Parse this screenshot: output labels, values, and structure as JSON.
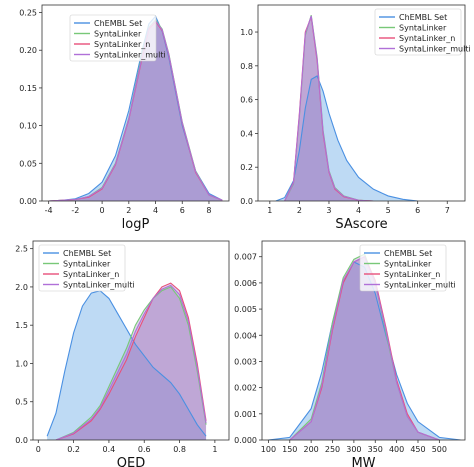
{
  "legend_labels": [
    "ChEMBL Set",
    "SyntaLinker",
    "SyntaLinker_n",
    "SyntaLinker_multi"
  ],
  "colors": {
    "chembl": "#4a90e2",
    "syntalinker": "#78c878",
    "syntalinker_n": "#e8507a",
    "syntalinker_multi": "#b070d8",
    "chembl_fill": "#a8cdf0",
    "overlap_fill": "#a383c6"
  },
  "chart_data": [
    {
      "type": "area",
      "xlabel": "logP",
      "xlim": [
        -4.5,
        9.5
      ],
      "ylim": [
        0,
        0.26
      ],
      "xticks": [
        -4,
        -2,
        0,
        2,
        4,
        6,
        8
      ],
      "yticks": [
        0.0,
        0.05,
        0.1,
        0.15,
        0.2,
        0.25
      ],
      "ytick_labels": [
        "0.00",
        "0.05",
        "0.10",
        "0.15",
        "0.20",
        "0.25"
      ],
      "series": [
        {
          "name": "ChEMBL Set",
          "x": [
            -4,
            -3,
            -2,
            -1,
            0,
            1,
            2,
            3,
            3.5,
            4,
            4.5,
            5,
            6,
            7,
            8,
            9
          ],
          "values": [
            0.0,
            0.001,
            0.003,
            0.01,
            0.025,
            0.06,
            0.12,
            0.2,
            0.235,
            0.245,
            0.225,
            0.19,
            0.1,
            0.04,
            0.01,
            0.001
          ]
        },
        {
          "name": "SyntaLinker",
          "x": [
            -4,
            -3,
            -2,
            -1,
            0,
            1,
            2,
            3,
            3.5,
            4,
            4.5,
            5,
            6,
            7,
            8,
            9
          ],
          "values": [
            0.0,
            0.001,
            0.002,
            0.006,
            0.018,
            0.05,
            0.11,
            0.195,
            0.23,
            0.24,
            0.228,
            0.195,
            0.105,
            0.04,
            0.008,
            0.001
          ]
        },
        {
          "name": "SyntaLinker_n",
          "x": [
            -4,
            -3,
            -2,
            -1,
            0,
            1,
            2,
            3,
            3.5,
            4,
            4.5,
            5,
            6,
            7,
            8,
            9
          ],
          "values": [
            0.0,
            0.001,
            0.002,
            0.005,
            0.016,
            0.048,
            0.108,
            0.19,
            0.228,
            0.238,
            0.226,
            0.193,
            0.103,
            0.038,
            0.008,
            0.001
          ]
        },
        {
          "name": "SyntaLinker_multi",
          "x": [
            -4,
            -3,
            -2,
            -1,
            0,
            1,
            2,
            3,
            3.5,
            4,
            4.5,
            5,
            6,
            7,
            8,
            9
          ],
          "values": [
            0.0,
            0.001,
            0.002,
            0.006,
            0.017,
            0.049,
            0.109,
            0.192,
            0.229,
            0.239,
            0.227,
            0.194,
            0.104,
            0.039,
            0.008,
            0.001
          ]
        }
      ],
      "legend": "top-left"
    },
    {
      "type": "area",
      "xlabel": "SAscore",
      "xlim": [
        0.6,
        7.6
      ],
      "ylim": [
        0,
        1.16
      ],
      "xticks": [
        1,
        2,
        3,
        4,
        5,
        6,
        7
      ],
      "yticks": [
        0.0,
        0.2,
        0.4,
        0.6,
        0.8,
        1.0
      ],
      "ytick_labels": [
        "0.0",
        "0.2",
        "0.4",
        "0.6",
        "0.8",
        "1.0"
      ],
      "series": [
        {
          "name": "ChEMBL Set",
          "x": [
            1.2,
            1.5,
            1.8,
            2.0,
            2.2,
            2.4,
            2.6,
            2.8,
            3.0,
            3.3,
            3.6,
            4.0,
            4.5,
            5.0,
            5.5,
            6.0
          ],
          "values": [
            0.0,
            0.02,
            0.12,
            0.3,
            0.55,
            0.72,
            0.74,
            0.65,
            0.52,
            0.36,
            0.24,
            0.14,
            0.07,
            0.03,
            0.01,
            0.0
          ]
        },
        {
          "name": "SyntaLinker",
          "x": [
            1.5,
            1.8,
            2.0,
            2.2,
            2.4,
            2.6,
            2.8,
            3.0,
            3.2,
            3.5,
            4.0,
            4.5
          ],
          "values": [
            0.0,
            0.1,
            0.5,
            0.98,
            1.1,
            0.85,
            0.42,
            0.18,
            0.08,
            0.03,
            0.005,
            0.0
          ]
        },
        {
          "name": "SyntaLinker_n",
          "x": [
            1.5,
            1.8,
            2.0,
            2.2,
            2.4,
            2.6,
            2.8,
            3.0,
            3.2,
            3.5,
            4.0,
            4.5
          ],
          "values": [
            0.0,
            0.11,
            0.52,
            1.0,
            1.09,
            0.83,
            0.4,
            0.17,
            0.07,
            0.025,
            0.004,
            0.0
          ]
        },
        {
          "name": "SyntaLinker_multi",
          "x": [
            1.5,
            1.8,
            2.0,
            2.2,
            2.4,
            2.6,
            2.8,
            3.0,
            3.2,
            3.5,
            4.0,
            4.5
          ],
          "values": [
            0.0,
            0.105,
            0.51,
            0.99,
            1.095,
            0.84,
            0.41,
            0.175,
            0.075,
            0.028,
            0.004,
            0.0
          ]
        }
      ],
      "legend": "top-right"
    },
    {
      "type": "area",
      "xlabel": "QED",
      "xlim": [
        -0.03,
        1.08
      ],
      "ylim": [
        0,
        2.6
      ],
      "xticks": [
        0.0,
        0.2,
        0.4,
        0.6,
        0.8,
        1.0
      ],
      "yticks": [
        0.0,
        0.5,
        1.0,
        1.5,
        2.0,
        2.5
      ],
      "ytick_labels": [
        "0.0",
        "0.5",
        "1.0",
        "1.5",
        "2.0",
        "2.5"
      ],
      "series": [
        {
          "name": "ChEMBL Set",
          "x": [
            0.05,
            0.1,
            0.15,
            0.2,
            0.25,
            0.3,
            0.35,
            0.4,
            0.45,
            0.5,
            0.55,
            0.6,
            0.65,
            0.7,
            0.75,
            0.8,
            0.85,
            0.9,
            0.95
          ],
          "values": [
            0.05,
            0.35,
            0.9,
            1.4,
            1.75,
            1.92,
            1.95,
            1.85,
            1.65,
            1.45,
            1.25,
            1.1,
            0.95,
            0.85,
            0.75,
            0.6,
            0.4,
            0.2,
            0.05
          ]
        },
        {
          "name": "SyntaLinker",
          "x": [
            0.1,
            0.2,
            0.3,
            0.35,
            0.4,
            0.5,
            0.55,
            0.6,
            0.65,
            0.7,
            0.75,
            0.8,
            0.85,
            0.9,
            0.95
          ],
          "values": [
            0.0,
            0.1,
            0.3,
            0.45,
            0.7,
            1.2,
            1.5,
            1.7,
            1.85,
            1.95,
            2.0,
            1.85,
            1.5,
            0.9,
            0.2
          ]
        },
        {
          "name": "SyntaLinker_n",
          "x": [
            0.1,
            0.2,
            0.3,
            0.35,
            0.4,
            0.5,
            0.55,
            0.6,
            0.65,
            0.7,
            0.75,
            0.8,
            0.85,
            0.9,
            0.95
          ],
          "values": [
            0.0,
            0.08,
            0.25,
            0.4,
            0.6,
            1.05,
            1.35,
            1.6,
            1.85,
            2.0,
            2.05,
            1.95,
            1.6,
            1.0,
            0.25
          ]
        },
        {
          "name": "SyntaLinker_multi",
          "x": [
            0.1,
            0.2,
            0.3,
            0.35,
            0.4,
            0.5,
            0.55,
            0.6,
            0.65,
            0.7,
            0.75,
            0.8,
            0.85,
            0.9,
            0.95
          ],
          "values": [
            0.0,
            0.09,
            0.27,
            0.42,
            0.65,
            1.12,
            1.42,
            1.65,
            1.85,
            1.97,
            2.02,
            1.9,
            1.55,
            0.95,
            0.22
          ]
        }
      ],
      "legend": "top-left"
    },
    {
      "type": "area",
      "xlabel": "MW",
      "xlim": [
        85,
        560
      ],
      "ylim": [
        0,
        0.0076
      ],
      "xticks": [
        100,
        150,
        200,
        250,
        300,
        350,
        400,
        450,
        500
      ],
      "yticks": [
        0.0,
        0.001,
        0.002,
        0.003,
        0.004,
        0.005,
        0.006,
        0.007
      ],
      "ytick_labels": [
        "0.000",
        "0.001",
        "0.002",
        "0.003",
        "0.004",
        "0.005",
        "0.006",
        "0.007"
      ],
      "series": [
        {
          "name": "ChEMBL Set",
          "x": [
            100,
            150,
            200,
            225,
            250,
            275,
            300,
            325,
            350,
            375,
            400,
            425,
            450,
            500,
            550
          ],
          "values": [
            0.0,
            0.0001,
            0.0012,
            0.0026,
            0.0045,
            0.006,
            0.0068,
            0.0066,
            0.0056,
            0.004,
            0.0025,
            0.0014,
            0.0007,
            0.0001,
            0.0
          ]
        },
        {
          "name": "SyntaLinker",
          "x": [
            150,
            200,
            225,
            250,
            275,
            300,
            325,
            350,
            375,
            400,
            425,
            450,
            500
          ],
          "values": [
            0.0,
            0.0008,
            0.0022,
            0.0045,
            0.0062,
            0.0069,
            0.0071,
            0.006,
            0.0041,
            0.0022,
            0.0009,
            0.0003,
            0.0
          ]
        },
        {
          "name": "SyntaLinker_n",
          "x": [
            150,
            200,
            225,
            250,
            275,
            300,
            325,
            350,
            375,
            400,
            425,
            450,
            500
          ],
          "values": [
            0.0,
            0.0007,
            0.002,
            0.0042,
            0.006,
            0.0068,
            0.007,
            0.0061,
            0.0043,
            0.0023,
            0.001,
            0.0003,
            0.0
          ]
        },
        {
          "name": "SyntaLinker_multi",
          "x": [
            150,
            200,
            225,
            250,
            275,
            300,
            325,
            350,
            375,
            400,
            425,
            450,
            500
          ],
          "values": [
            0.0,
            0.0007,
            0.0021,
            0.0043,
            0.0061,
            0.0068,
            0.007,
            0.006,
            0.0042,
            0.0022,
            0.0009,
            0.0003,
            0.0
          ]
        }
      ],
      "legend": "top-right"
    }
  ]
}
